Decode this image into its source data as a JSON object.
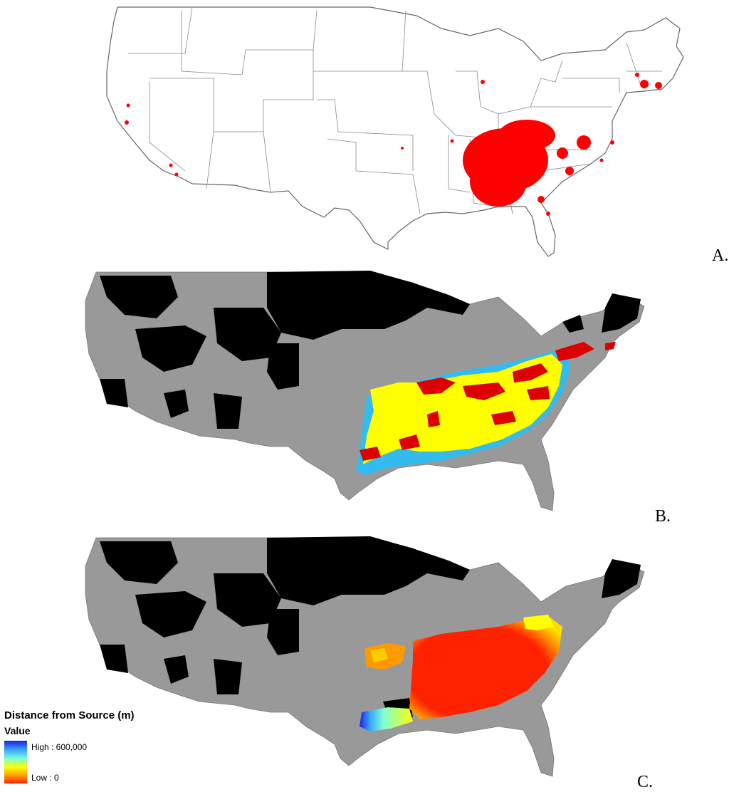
{
  "panels": [
    {
      "label": "A.",
      "type": "point-occurrence-map",
      "base_fill": "#ffffff",
      "point_color": "#ff0000"
    },
    {
      "label": "B.",
      "type": "categorical-suitability-map",
      "colors": [
        "#000000",
        "#999999",
        "#ffff00",
        "#33bbee",
        "#dd0000"
      ]
    },
    {
      "label": "C.",
      "type": "distance-surface-map",
      "colors": [
        "#000000",
        "#999999",
        "#ff2200",
        "#ff9900",
        "#ffff00",
        "#7fffd4",
        "#2020e0"
      ]
    }
  ],
  "legend": {
    "title": "Distance from Source (m)",
    "subtitle": "Value",
    "high_label": "High : 600,000",
    "low_label": "Low : 0",
    "ramp_colors": [
      "#2020e0",
      "#3aa8ff",
      "#7fffd4",
      "#ffff00",
      "#ff9900",
      "#ff2200"
    ]
  }
}
